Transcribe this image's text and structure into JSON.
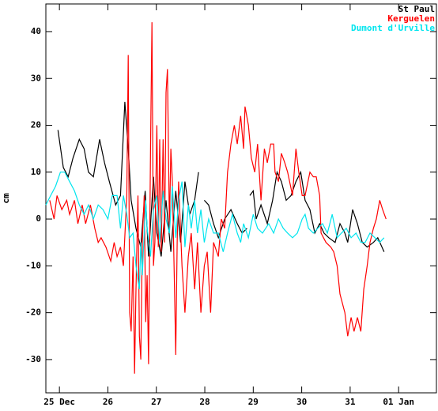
{
  "chart_data": {
    "type": "line",
    "y_label": "cm",
    "legend": "top-right",
    "xlim": [
      24.72,
      32.78
    ],
    "ylim": [
      -37.1,
      45.9
    ],
    "xticks": [
      {
        "value": 25,
        "label": "25 Dec"
      },
      26,
      27,
      28,
      29,
      30,
      31,
      {
        "value": 32,
        "label": "01 Jan"
      }
    ],
    "yticks": [
      -30,
      -20,
      -10,
      0,
      10,
      20,
      30,
      40
    ],
    "series": [
      {
        "name": "St Paul",
        "color": "#000000",
        "x": [
          24.97,
          25.08,
          25.18,
          25.28,
          25.41,
          25.51,
          25.6,
          25.7,
          25.83,
          25.93,
          26.03,
          26.16,
          26.26,
          26.35,
          26.42,
          26.48,
          26.58,
          26.68,
          26.77,
          26.84,
          26.94,
          27.01,
          27.1,
          27.2,
          27.3,
          27.4,
          27.5,
          27.59,
          27.69,
          27.79,
          27.87,
          27.92,
          27.99,
          28.08,
          28.18,
          28.28,
          28.41,
          28.54,
          28.67,
          28.77,
          28.87,
          28.9,
          28.93,
          29.0,
          29.06,
          29.16,
          29.29,
          29.4,
          29.49,
          29.58,
          29.68,
          29.78,
          29.88,
          29.98,
          30.07,
          30.17,
          30.27,
          30.37,
          30.46,
          30.56,
          30.69,
          30.79,
          30.89,
          30.95,
          31.05,
          31.15,
          31.25,
          31.35,
          31.48,
          31.57,
          31.7
        ],
        "values": [
          19,
          11,
          9,
          13,
          17,
          15,
          10,
          9,
          17,
          12,
          8,
          3,
          5,
          25,
          15,
          4,
          -2,
          -6,
          6,
          -8,
          9,
          -3,
          -8,
          4,
          -7,
          6,
          -5,
          8,
          1,
          4,
          10,
          null,
          4,
          3,
          -1,
          -4,
          0,
          2,
          -1,
          -3,
          -2,
          null,
          5,
          6,
          0,
          3,
          -1,
          4,
          10,
          8,
          4,
          5,
          8,
          10,
          4,
          2,
          -3,
          -1,
          -3,
          -4,
          -5,
          -1,
          -3,
          -5,
          2,
          -1,
          -5,
          -6,
          -5,
          -4,
          -7
        ]
      },
      {
        "name": "Kerguelen",
        "color": "#ff0000",
        "x": [
          24.8,
          24.89,
          24.95,
          25.05,
          25.15,
          25.21,
          25.31,
          25.38,
          25.47,
          25.54,
          25.64,
          25.73,
          25.8,
          25.86,
          25.96,
          26.06,
          26.13,
          26.19,
          26.26,
          26.32,
          26.39,
          26.42,
          26.45,
          26.48,
          26.52,
          26.55,
          26.58,
          26.62,
          26.65,
          26.68,
          26.71,
          26.75,
          26.78,
          26.81,
          26.84,
          26.88,
          26.91,
          26.94,
          26.97,
          27.01,
          27.04,
          27.07,
          27.1,
          27.14,
          27.17,
          27.2,
          27.23,
          27.27,
          27.3,
          27.33,
          27.37,
          27.4,
          27.43,
          27.46,
          27.53,
          27.59,
          27.66,
          27.72,
          27.79,
          27.85,
          27.92,
          27.99,
          28.05,
          28.12,
          28.18,
          28.28,
          28.34,
          28.41,
          28.47,
          28.54,
          28.61,
          28.67,
          28.74,
          28.8,
          28.83,
          28.9,
          28.96,
          29.03,
          29.09,
          29.16,
          29.23,
          29.29,
          29.36,
          29.42,
          29.45,
          29.52,
          29.58,
          29.65,
          29.71,
          29.81,
          29.88,
          29.94,
          30.01,
          30.07,
          30.17,
          30.24,
          30.3,
          30.37,
          30.4,
          30.5,
          30.6,
          30.66,
          30.73,
          30.79,
          30.89,
          30.95,
          31.02,
          31.08,
          31.15,
          31.22,
          31.28,
          31.35,
          31.41,
          31.48,
          31.54,
          31.61,
          31.67,
          31.74
        ],
        "values": [
          4,
          0,
          5,
          2,
          4,
          1,
          4,
          -1,
          3,
          -1,
          3,
          -2,
          -5,
          -4,
          -6,
          -9,
          -5,
          -8,
          -6,
          -10,
          5,
          35,
          -20,
          -24,
          -8,
          -33,
          -15,
          5,
          -25,
          -30,
          -5,
          5,
          -22,
          -12,
          -31,
          15,
          42,
          -10,
          -5,
          20,
          -6,
          17,
          -7,
          17,
          -5,
          27,
          32,
          -2,
          15,
          8,
          -12,
          -29,
          -5,
          8,
          -10,
          -20,
          -8,
          -3,
          -15,
          -5,
          -20,
          -10,
          -7,
          -20,
          -5,
          -8,
          0,
          -2,
          10,
          16,
          20,
          16,
          22,
          15,
          24,
          20,
          13,
          10,
          16,
          4,
          15,
          12,
          16,
          16,
          10,
          8,
          14,
          12,
          10,
          5,
          15,
          10,
          5,
          5,
          10,
          9,
          9,
          5,
          -3,
          -5,
          -6,
          -7,
          -10,
          -16,
          -20,
          -25,
          -21,
          -24,
          -21,
          -24,
          -15,
          -10,
          -5,
          -2,
          0,
          4,
          2,
          0
        ]
      },
      {
        "name": "Dumont d'Urville",
        "color": "#00e5ee",
        "x": [
          24.72,
          24.82,
          24.92,
          25.02,
          25.11,
          25.21,
          25.31,
          25.41,
          25.51,
          25.6,
          25.7,
          25.8,
          25.9,
          26.0,
          26.09,
          26.19,
          26.26,
          26.32,
          26.39,
          26.45,
          26.52,
          26.58,
          26.65,
          26.68,
          26.71,
          26.78,
          26.81,
          26.88,
          26.94,
          27.01,
          27.07,
          27.14,
          27.2,
          27.27,
          27.33,
          27.4,
          27.46,
          27.53,
          27.59,
          27.66,
          27.72,
          27.79,
          27.85,
          27.92,
          27.99,
          28.08,
          28.18,
          28.28,
          28.38,
          28.47,
          28.57,
          28.67,
          28.74,
          28.8,
          28.9,
          29.0,
          29.09,
          29.19,
          29.32,
          29.42,
          29.52,
          29.62,
          29.71,
          29.81,
          29.91,
          30.01,
          30.07,
          30.14,
          30.24,
          30.33,
          30.43,
          30.53,
          30.63,
          30.73,
          30.82,
          30.92,
          31.02,
          31.12,
          31.22,
          31.31,
          31.41,
          31.51,
          31.61,
          31.7
        ],
        "values": [
          3,
          5,
          7,
          10,
          10,
          8,
          6,
          3,
          1,
          3,
          0,
          3,
          2,
          0,
          5,
          5,
          -2,
          5,
          1,
          -4,
          -3,
          -10,
          -15,
          -5,
          -12,
          4,
          -2,
          -8,
          2,
          5,
          -5,
          6,
          0,
          -3,
          7,
          -4,
          4,
          8,
          -6,
          3,
          -2,
          4,
          -3,
          2,
          -5,
          0,
          -3,
          -3,
          -7,
          -3,
          1,
          -3,
          -5,
          -1,
          -4,
          1,
          -2,
          -3,
          -1,
          -3,
          0,
          -2,
          -3,
          -4,
          -3,
          0,
          1,
          -2,
          -3,
          -2,
          -1,
          -3,
          1,
          -4,
          -3,
          -2,
          -4,
          -3,
          -5,
          -5,
          -3,
          -4,
          -5,
          -4
        ]
      }
    ]
  }
}
